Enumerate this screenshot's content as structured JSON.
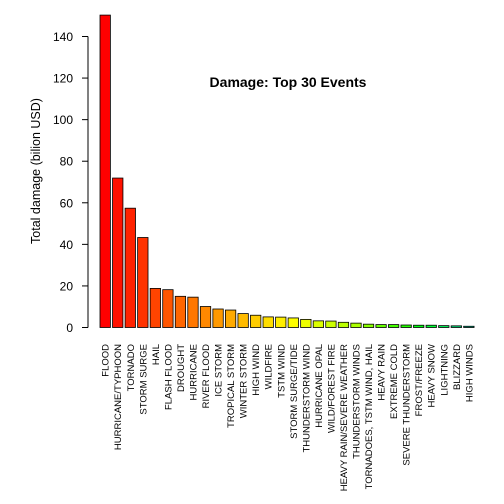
{
  "chart_data": {
    "type": "bar",
    "title": "Damage: Top 30 Events",
    "xlabel": "",
    "ylabel": "Total damage (bilion USD)",
    "ylim": [
      0,
      150
    ],
    "yticks": [
      0,
      20,
      40,
      60,
      80,
      100,
      120,
      140
    ],
    "grid": false,
    "legend": "none",
    "categories": [
      "FLOOD",
      "HURRICANE/TYPHOON",
      "TORNADO",
      "STORM SURGE",
      "HAIL",
      "FLASH FLOOD",
      "DROUGHT",
      "HURRICANE",
      "RIVER FLOOD",
      "ICE STORM",
      "TROPICAL STORM",
      "WINTER STORM",
      "HIGH WIND",
      "WILDFIRE",
      "TSTM WIND",
      "STORM SURGE/TIDE",
      "THUNDERSTORM WIND",
      "HURRICANE OPAL",
      "WILD/FOREST FIRE",
      "HEAVY RAIN/SEVERE WEATHER",
      "THUNDERSTORM WINDS",
      "TORNADOES, TSTM WIND, HAIL",
      "HEAVY RAIN",
      "EXTREME COLD",
      "SEVERE THUNDERSTORM",
      "FROST/FREEZE",
      "HEAVY SNOW",
      "LIGHTNING",
      "BLIZZARD",
      "HIGH WINDS"
    ],
    "values": [
      150.3,
      71.9,
      57.4,
      43.3,
      18.8,
      18.2,
      15.0,
      14.6,
      10.1,
      8.9,
      8.4,
      6.7,
      5.9,
      5.1,
      5.0,
      4.6,
      3.9,
      3.2,
      3.1,
      2.5,
      2.1,
      1.6,
      1.4,
      1.4,
      1.2,
      1.1,
      1.1,
      0.9,
      0.8,
      0.6
    ],
    "colors": [
      "#FF0000",
      "#FF1100",
      "#FF2200",
      "#FF3300",
      "#FF4400",
      "#FF5500",
      "#FF6600",
      "#FF7700",
      "#FF8800",
      "#FF9900",
      "#FFAA00",
      "#FFBB00",
      "#FFCC00",
      "#FFDD00",
      "#FFEE00",
      "#FFFF00",
      "#EEFF00",
      "#DDFF00",
      "#CCFF00",
      "#BBFF00",
      "#AAFF00",
      "#88FF00",
      "#66FF00",
      "#44FF00",
      "#22FF00",
      "#00FF11",
      "#00FF33",
      "#00EE55",
      "#00DD77",
      "#00CC99"
    ]
  }
}
